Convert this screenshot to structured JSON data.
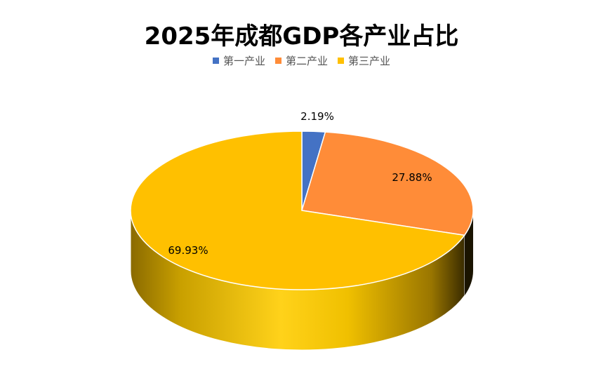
{
  "chart_data": {
    "type": "pie",
    "title": "2025年成都GDP各产业占比",
    "legend_position": "top",
    "categories": [
      "第一产业",
      "第二产业",
      "第三产业"
    ],
    "values": [
      2.19,
      27.88,
      69.93
    ],
    "data_labels": [
      "2.19%",
      "27.88%",
      "69.93%"
    ],
    "colors": [
      "#4472C4",
      "#FF8C38",
      "#FFC000"
    ],
    "style": "3d"
  }
}
